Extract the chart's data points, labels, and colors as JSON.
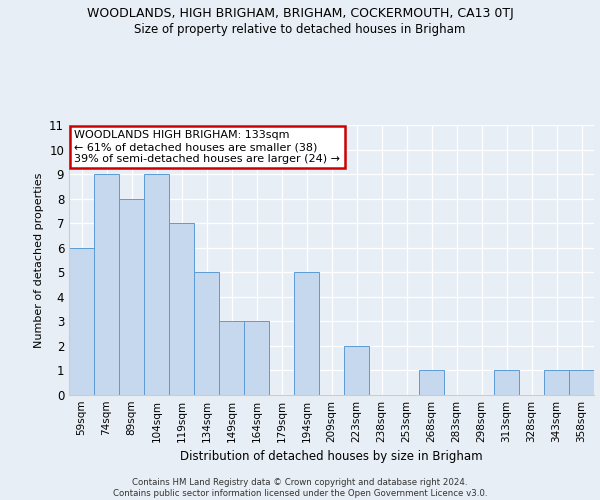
{
  "title_main": "WOODLANDS, HIGH BRIGHAM, BRIGHAM, COCKERMOUTH, CA13 0TJ",
  "title_sub": "Size of property relative to detached houses in Brigham",
  "xlabel": "Distribution of detached houses by size in Brigham",
  "ylabel": "Number of detached properties",
  "categories": [
    "59sqm",
    "74sqm",
    "89sqm",
    "104sqm",
    "119sqm",
    "134sqm",
    "149sqm",
    "164sqm",
    "179sqm",
    "194sqm",
    "209sqm",
    "223sqm",
    "238sqm",
    "253sqm",
    "268sqm",
    "283sqm",
    "298sqm",
    "313sqm",
    "328sqm",
    "343sqm",
    "358sqm"
  ],
  "values": [
    6,
    9,
    8,
    9,
    7,
    5,
    3,
    3,
    0,
    5,
    0,
    2,
    0,
    0,
    1,
    0,
    0,
    1,
    0,
    1,
    1
  ],
  "bar_color": "#c5d8ed",
  "bar_edge_color": "#5b9bd5",
  "annotation_text": "WOODLANDS HIGH BRIGHAM: 133sqm\n← 61% of detached houses are smaller (38)\n39% of semi-detached houses are larger (24) →",
  "annotation_box_color": "#ffffff",
  "annotation_box_edge_color": "#cc0000",
  "ylim": [
    0,
    11
  ],
  "yticks": [
    0,
    1,
    2,
    3,
    4,
    5,
    6,
    7,
    8,
    9,
    10,
    11
  ],
  "footer_line1": "Contains HM Land Registry data © Crown copyright and database right 2024.",
  "footer_line2": "Contains public sector information licensed under the Open Government Licence v3.0.",
  "bg_color": "#e8eef5",
  "plot_bg_color": "#e8eef5"
}
